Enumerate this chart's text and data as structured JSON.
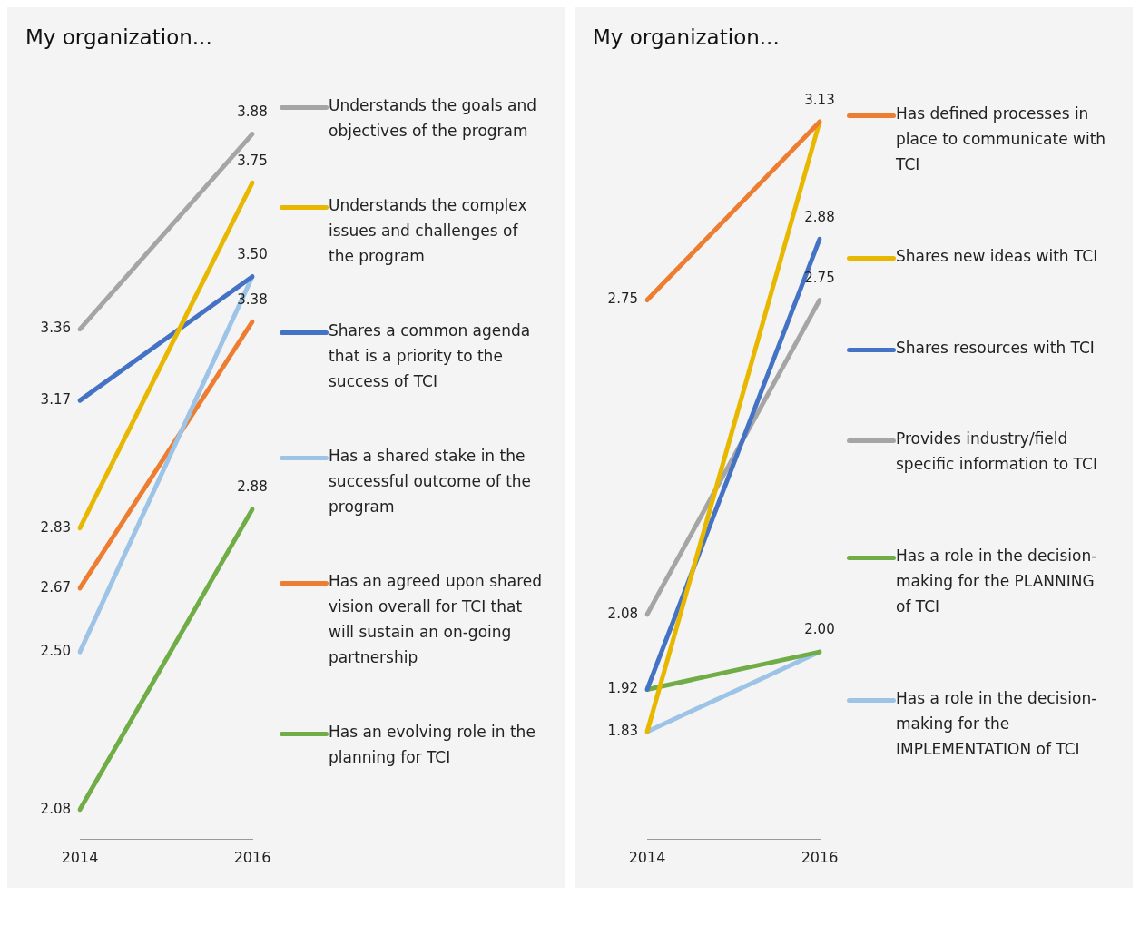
{
  "chart_data": [
    {
      "type": "line",
      "title": "My organization...",
      "categories": [
        "2014",
        "2016"
      ],
      "legend": "right",
      "grid": false,
      "marker": "none",
      "line_style": "solid",
      "series": [
        {
          "name": "Understands the goals and objectives of the program",
          "color": "#a5a5a5",
          "values": [
            3.36,
            3.88
          ],
          "value_labels": [
            "3.36",
            "3.88"
          ]
        },
        {
          "name": "Understands the complex issues and challenges of the program",
          "color": "#e8b800",
          "values": [
            2.83,
            3.75
          ],
          "value_labels": [
            "2.83",
            "3.75"
          ]
        },
        {
          "name": "Shares a common agenda that is a priority to the success of TCI",
          "color": "#4472c4",
          "values": [
            3.17,
            3.5
          ],
          "value_labels": [
            "3.17",
            "3.50"
          ]
        },
        {
          "name": "Has a shared stake in the successful outcome of the program",
          "color": "#9dc3e6",
          "values": [
            2.5,
            3.5
          ],
          "value_labels": [
            "2.50",
            null
          ]
        },
        {
          "name": "Has an agreed upon shared vision overall for TCI that will sustain an on-going partnership",
          "color": "#ed7d31",
          "values": [
            2.67,
            3.38
          ],
          "value_labels": [
            "2.67",
            "3.38"
          ]
        },
        {
          "name": "Has an evolving role in the planning for TCI",
          "color": "#70ad47",
          "values": [
            2.08,
            2.88
          ],
          "value_labels": [
            "2.08",
            "2.88"
          ]
        }
      ]
    },
    {
      "type": "line",
      "title": "My organization...",
      "categories": [
        "2014",
        "2016"
      ],
      "legend": "right",
      "grid": false,
      "marker": "none",
      "line_style": "solid",
      "series": [
        {
          "name": "Has defined processes in place to communicate with TCI",
          "color": "#ed7d31",
          "values": [
            2.75,
            3.13
          ],
          "value_labels": [
            "2.75",
            "3.13"
          ]
        },
        {
          "name": "Shares new ideas with TCI",
          "color": "#e8b800",
          "values": [
            1.83,
            3.13
          ],
          "value_labels": [
            null,
            null
          ]
        },
        {
          "name": "Shares resources with TCI",
          "color": "#4472c4",
          "values": [
            1.92,
            2.88
          ],
          "value_labels": [
            null,
            "2.88"
          ]
        },
        {
          "name": "Provides industry/field specific information to TCI",
          "color": "#a5a5a5",
          "values": [
            2.08,
            2.75
          ],
          "value_labels": [
            "2.08",
            "2.75"
          ]
        },
        {
          "name": "Has a role in the decision-making for the PLANNING of TCI",
          "color": "#70ad47",
          "values": [
            1.92,
            2.0
          ],
          "value_labels": [
            "1.92",
            null
          ]
        },
        {
          "name": "Has a role in the decision-making for the IMPLEMENTATION of TCI",
          "color": "#9dc3e6",
          "values": [
            1.83,
            2.0
          ],
          "value_labels": [
            "1.83",
            "2.00"
          ]
        }
      ]
    }
  ]
}
